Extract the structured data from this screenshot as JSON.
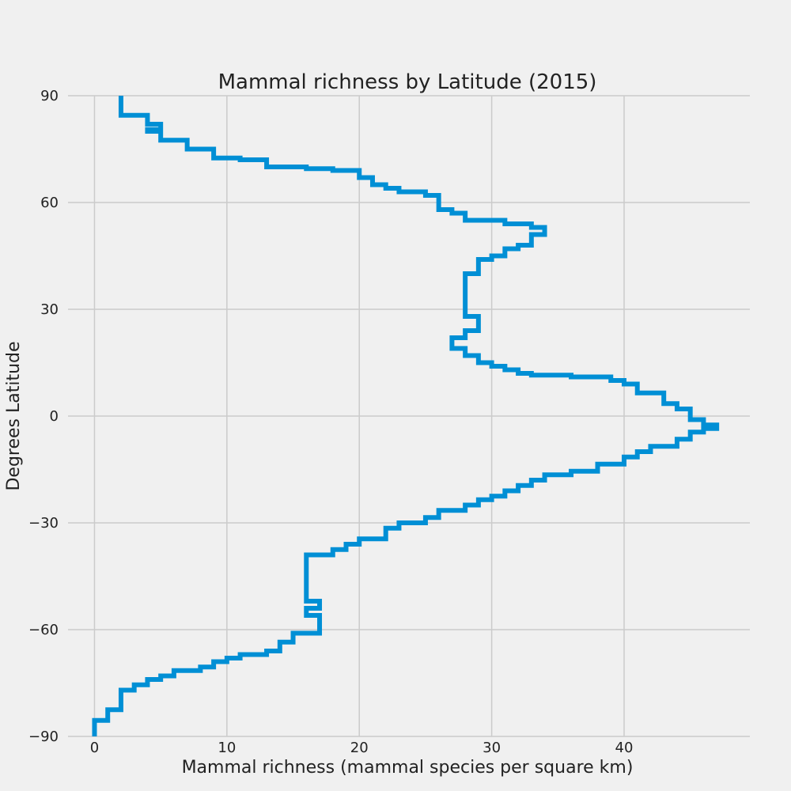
{
  "chart_data": {
    "type": "line",
    "drawstyle": "steps",
    "title": "Mammal richness by Latitude (2015)",
    "xlabel": "Mammal richness (mammal species per square km)",
    "ylabel": "Degrees Latitude",
    "xlim": [
      -2,
      49.5
    ],
    "ylim": [
      -90,
      90
    ],
    "xticks": [
      0,
      10,
      20,
      30,
      40
    ],
    "yticks": [
      -90,
      -60,
      -30,
      0,
      30,
      60,
      90
    ],
    "xtick_labels": [
      "0",
      "10",
      "20",
      "30",
      "40"
    ],
    "ytick_labels": [
      "−90",
      "−60",
      "−30",
      "0",
      "30",
      "60",
      "90"
    ],
    "grid": true,
    "colors": {
      "series": "#008fd5",
      "grid": "#cbcbcb",
      "background": "#f0f0f0"
    },
    "series": [
      {
        "points": [
          {
            "x": 2,
            "y": 90
          },
          {
            "x": 2,
            "y": 84.5
          },
          {
            "x": 4,
            "y": 84.5
          },
          {
            "x": 4,
            "y": 82
          },
          {
            "x": 5,
            "y": 82
          },
          {
            "x": 5,
            "y": 80.5
          },
          {
            "x": 4,
            "y": 80.5
          },
          {
            "x": 4,
            "y": 80
          },
          {
            "x": 5,
            "y": 80
          },
          {
            "x": 5,
            "y": 77.5
          },
          {
            "x": 7,
            "y": 77.5
          },
          {
            "x": 7,
            "y": 75
          },
          {
            "x": 9,
            "y": 75
          },
          {
            "x": 9,
            "y": 72.5
          },
          {
            "x": 11,
            "y": 72.5
          },
          {
            "x": 11,
            "y": 72
          },
          {
            "x": 13,
            "y": 72
          },
          {
            "x": 13,
            "y": 70
          },
          {
            "x": 16,
            "y": 70
          },
          {
            "x": 16,
            "y": 69.5
          },
          {
            "x": 18,
            "y": 69.5
          },
          {
            "x": 18,
            "y": 69
          },
          {
            "x": 20,
            "y": 69
          },
          {
            "x": 20,
            "y": 67
          },
          {
            "x": 21,
            "y": 67
          },
          {
            "x": 21,
            "y": 65
          },
          {
            "x": 22,
            "y": 65
          },
          {
            "x": 22,
            "y": 64
          },
          {
            "x": 23,
            "y": 64
          },
          {
            "x": 23,
            "y": 63
          },
          {
            "x": 25,
            "y": 63
          },
          {
            "x": 25,
            "y": 62
          },
          {
            "x": 26,
            "y": 62
          },
          {
            "x": 26,
            "y": 58
          },
          {
            "x": 27,
            "y": 58
          },
          {
            "x": 27,
            "y": 57
          },
          {
            "x": 28,
            "y": 57
          },
          {
            "x": 28,
            "y": 55
          },
          {
            "x": 31,
            "y": 55
          },
          {
            "x": 31,
            "y": 54
          },
          {
            "x": 33,
            "y": 54
          },
          {
            "x": 33,
            "y": 53
          },
          {
            "x": 34,
            "y": 53
          },
          {
            "x": 34,
            "y": 51
          },
          {
            "x": 33,
            "y": 51
          },
          {
            "x": 33,
            "y": 48
          },
          {
            "x": 32,
            "y": 48
          },
          {
            "x": 32,
            "y": 47
          },
          {
            "x": 31,
            "y": 47
          },
          {
            "x": 31,
            "y": 45
          },
          {
            "x": 30,
            "y": 45
          },
          {
            "x": 30,
            "y": 44
          },
          {
            "x": 29,
            "y": 44
          },
          {
            "x": 29,
            "y": 40
          },
          {
            "x": 28,
            "y": 40
          },
          {
            "x": 28,
            "y": 28
          },
          {
            "x": 29,
            "y": 28
          },
          {
            "x": 29,
            "y": 24
          },
          {
            "x": 28,
            "y": 24
          },
          {
            "x": 28,
            "y": 22
          },
          {
            "x": 27,
            "y": 22
          },
          {
            "x": 27,
            "y": 19
          },
          {
            "x": 28,
            "y": 19
          },
          {
            "x": 28,
            "y": 17
          },
          {
            "x": 29,
            "y": 17
          },
          {
            "x": 29,
            "y": 15
          },
          {
            "x": 30,
            "y": 15
          },
          {
            "x": 30,
            "y": 14
          },
          {
            "x": 31,
            "y": 14
          },
          {
            "x": 31,
            "y": 13
          },
          {
            "x": 32,
            "y": 13
          },
          {
            "x": 32,
            "y": 12
          },
          {
            "x": 33,
            "y": 12
          },
          {
            "x": 33,
            "y": 11.5
          },
          {
            "x": 36,
            "y": 11.5
          },
          {
            "x": 36,
            "y": 11
          },
          {
            "x": 39,
            "y": 11
          },
          {
            "x": 39,
            "y": 10
          },
          {
            "x": 40,
            "y": 10
          },
          {
            "x": 40,
            "y": 9
          },
          {
            "x": 41,
            "y": 9
          },
          {
            "x": 41,
            "y": 6.5
          },
          {
            "x": 43,
            "y": 6.5
          },
          {
            "x": 43,
            "y": 3.5
          },
          {
            "x": 44,
            "y": 3.5
          },
          {
            "x": 44,
            "y": 2
          },
          {
            "x": 45,
            "y": 2
          },
          {
            "x": 45,
            "y": -1
          },
          {
            "x": 46,
            "y": -1
          },
          {
            "x": 46,
            "y": -2.5
          },
          {
            "x": 47,
            "y": -2.5
          },
          {
            "x": 47,
            "y": -3.5
          },
          {
            "x": 46,
            "y": -3.5
          },
          {
            "x": 46,
            "y": -4.5
          },
          {
            "x": 45,
            "y": -4.5
          },
          {
            "x": 45,
            "y": -6.5
          },
          {
            "x": 44,
            "y": -6.5
          },
          {
            "x": 44,
            "y": -8.5
          },
          {
            "x": 42,
            "y": -8.5
          },
          {
            "x": 42,
            "y": -10
          },
          {
            "x": 41,
            "y": -10
          },
          {
            "x": 41,
            "y": -11.5
          },
          {
            "x": 40,
            "y": -11.5
          },
          {
            "x": 40,
            "y": -13.5
          },
          {
            "x": 38,
            "y": -13.5
          },
          {
            "x": 38,
            "y": -15.5
          },
          {
            "x": 36,
            "y": -15.5
          },
          {
            "x": 36,
            "y": -16.5
          },
          {
            "x": 34,
            "y": -16.5
          },
          {
            "x": 34,
            "y": -18
          },
          {
            "x": 33,
            "y": -18
          },
          {
            "x": 33,
            "y": -19.5
          },
          {
            "x": 32,
            "y": -19.5
          },
          {
            "x": 32,
            "y": -21
          },
          {
            "x": 31,
            "y": -21
          },
          {
            "x": 31,
            "y": -22.5
          },
          {
            "x": 30,
            "y": -22.5
          },
          {
            "x": 30,
            "y": -23.5
          },
          {
            "x": 29,
            "y": -23.5
          },
          {
            "x": 29,
            "y": -25
          },
          {
            "x": 28,
            "y": -25
          },
          {
            "x": 28,
            "y": -26.5
          },
          {
            "x": 26,
            "y": -26.5
          },
          {
            "x": 26,
            "y": -28.5
          },
          {
            "x": 25,
            "y": -28.5
          },
          {
            "x": 25,
            "y": -30
          },
          {
            "x": 23,
            "y": -30
          },
          {
            "x": 23,
            "y": -31.5
          },
          {
            "x": 22,
            "y": -31.5
          },
          {
            "x": 22,
            "y": -34.5
          },
          {
            "x": 20,
            "y": -34.5
          },
          {
            "x": 20,
            "y": -36
          },
          {
            "x": 19,
            "y": -36
          },
          {
            "x": 19,
            "y": -37.5
          },
          {
            "x": 18,
            "y": -37.5
          },
          {
            "x": 18,
            "y": -39
          },
          {
            "x": 16,
            "y": -39
          },
          {
            "x": 16,
            "y": -52
          },
          {
            "x": 17,
            "y": -52
          },
          {
            "x": 17,
            "y": -54
          },
          {
            "x": 16,
            "y": -54
          },
          {
            "x": 16,
            "y": -56
          },
          {
            "x": 17,
            "y": -56
          },
          {
            "x": 17,
            "y": -61
          },
          {
            "x": 15,
            "y": -61
          },
          {
            "x": 15,
            "y": -63.5
          },
          {
            "x": 14,
            "y": -63.5
          },
          {
            "x": 14,
            "y": -66
          },
          {
            "x": 13,
            "y": -66
          },
          {
            "x": 13,
            "y": -67
          },
          {
            "x": 11,
            "y": -67
          },
          {
            "x": 11,
            "y": -68
          },
          {
            "x": 10,
            "y": -68
          },
          {
            "x": 10,
            "y": -69
          },
          {
            "x": 9,
            "y": -69
          },
          {
            "x": 9,
            "y": -70.5
          },
          {
            "x": 8,
            "y": -70.5
          },
          {
            "x": 8,
            "y": -71.5
          },
          {
            "x": 6,
            "y": -71.5
          },
          {
            "x": 6,
            "y": -73
          },
          {
            "x": 5,
            "y": -73
          },
          {
            "x": 5,
            "y": -74
          },
          {
            "x": 4,
            "y": -74
          },
          {
            "x": 4,
            "y": -75.5
          },
          {
            "x": 3,
            "y": -75.5
          },
          {
            "x": 3,
            "y": -77
          },
          {
            "x": 2,
            "y": -77
          },
          {
            "x": 2,
            "y": -82.5
          },
          {
            "x": 1,
            "y": -82.5
          },
          {
            "x": 1,
            "y": -85.5
          },
          {
            "x": 0,
            "y": -85.5
          },
          {
            "x": 0,
            "y": -90
          }
        ]
      }
    ]
  }
}
